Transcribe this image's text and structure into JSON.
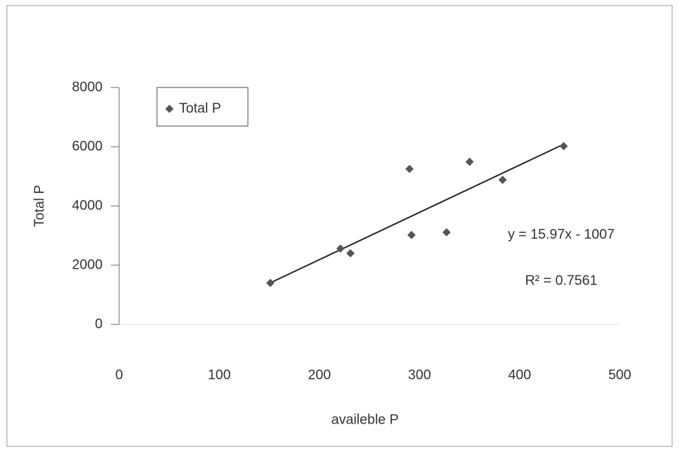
{
  "chart_data": {
    "type": "scatter",
    "x_label": "availeble P",
    "y_label": "Total P",
    "series": [
      {
        "name": "Total P",
        "color": "#555555",
        "x": [
          151,
          221,
          231,
          290,
          292,
          327,
          350,
          383,
          444
        ],
        "values": [
          1400,
          2560,
          2400,
          5250,
          3020,
          3110,
          5490,
          4880,
          6020
        ]
      }
    ],
    "trendline": {
      "slope": 15.97,
      "intercept": -1007,
      "label": "y = 15.97x - 1007",
      "r2": 0.7561,
      "r2_label": "R² = 0.7561"
    },
    "xlim": [
      0,
      500
    ],
    "xticks": [
      0,
      100,
      200,
      300,
      400,
      500
    ],
    "ylim": [
      0,
      8000
    ],
    "yticks": [
      0,
      2000,
      4000,
      6000,
      8000
    ],
    "grid": false,
    "legend": "top-left"
  }
}
